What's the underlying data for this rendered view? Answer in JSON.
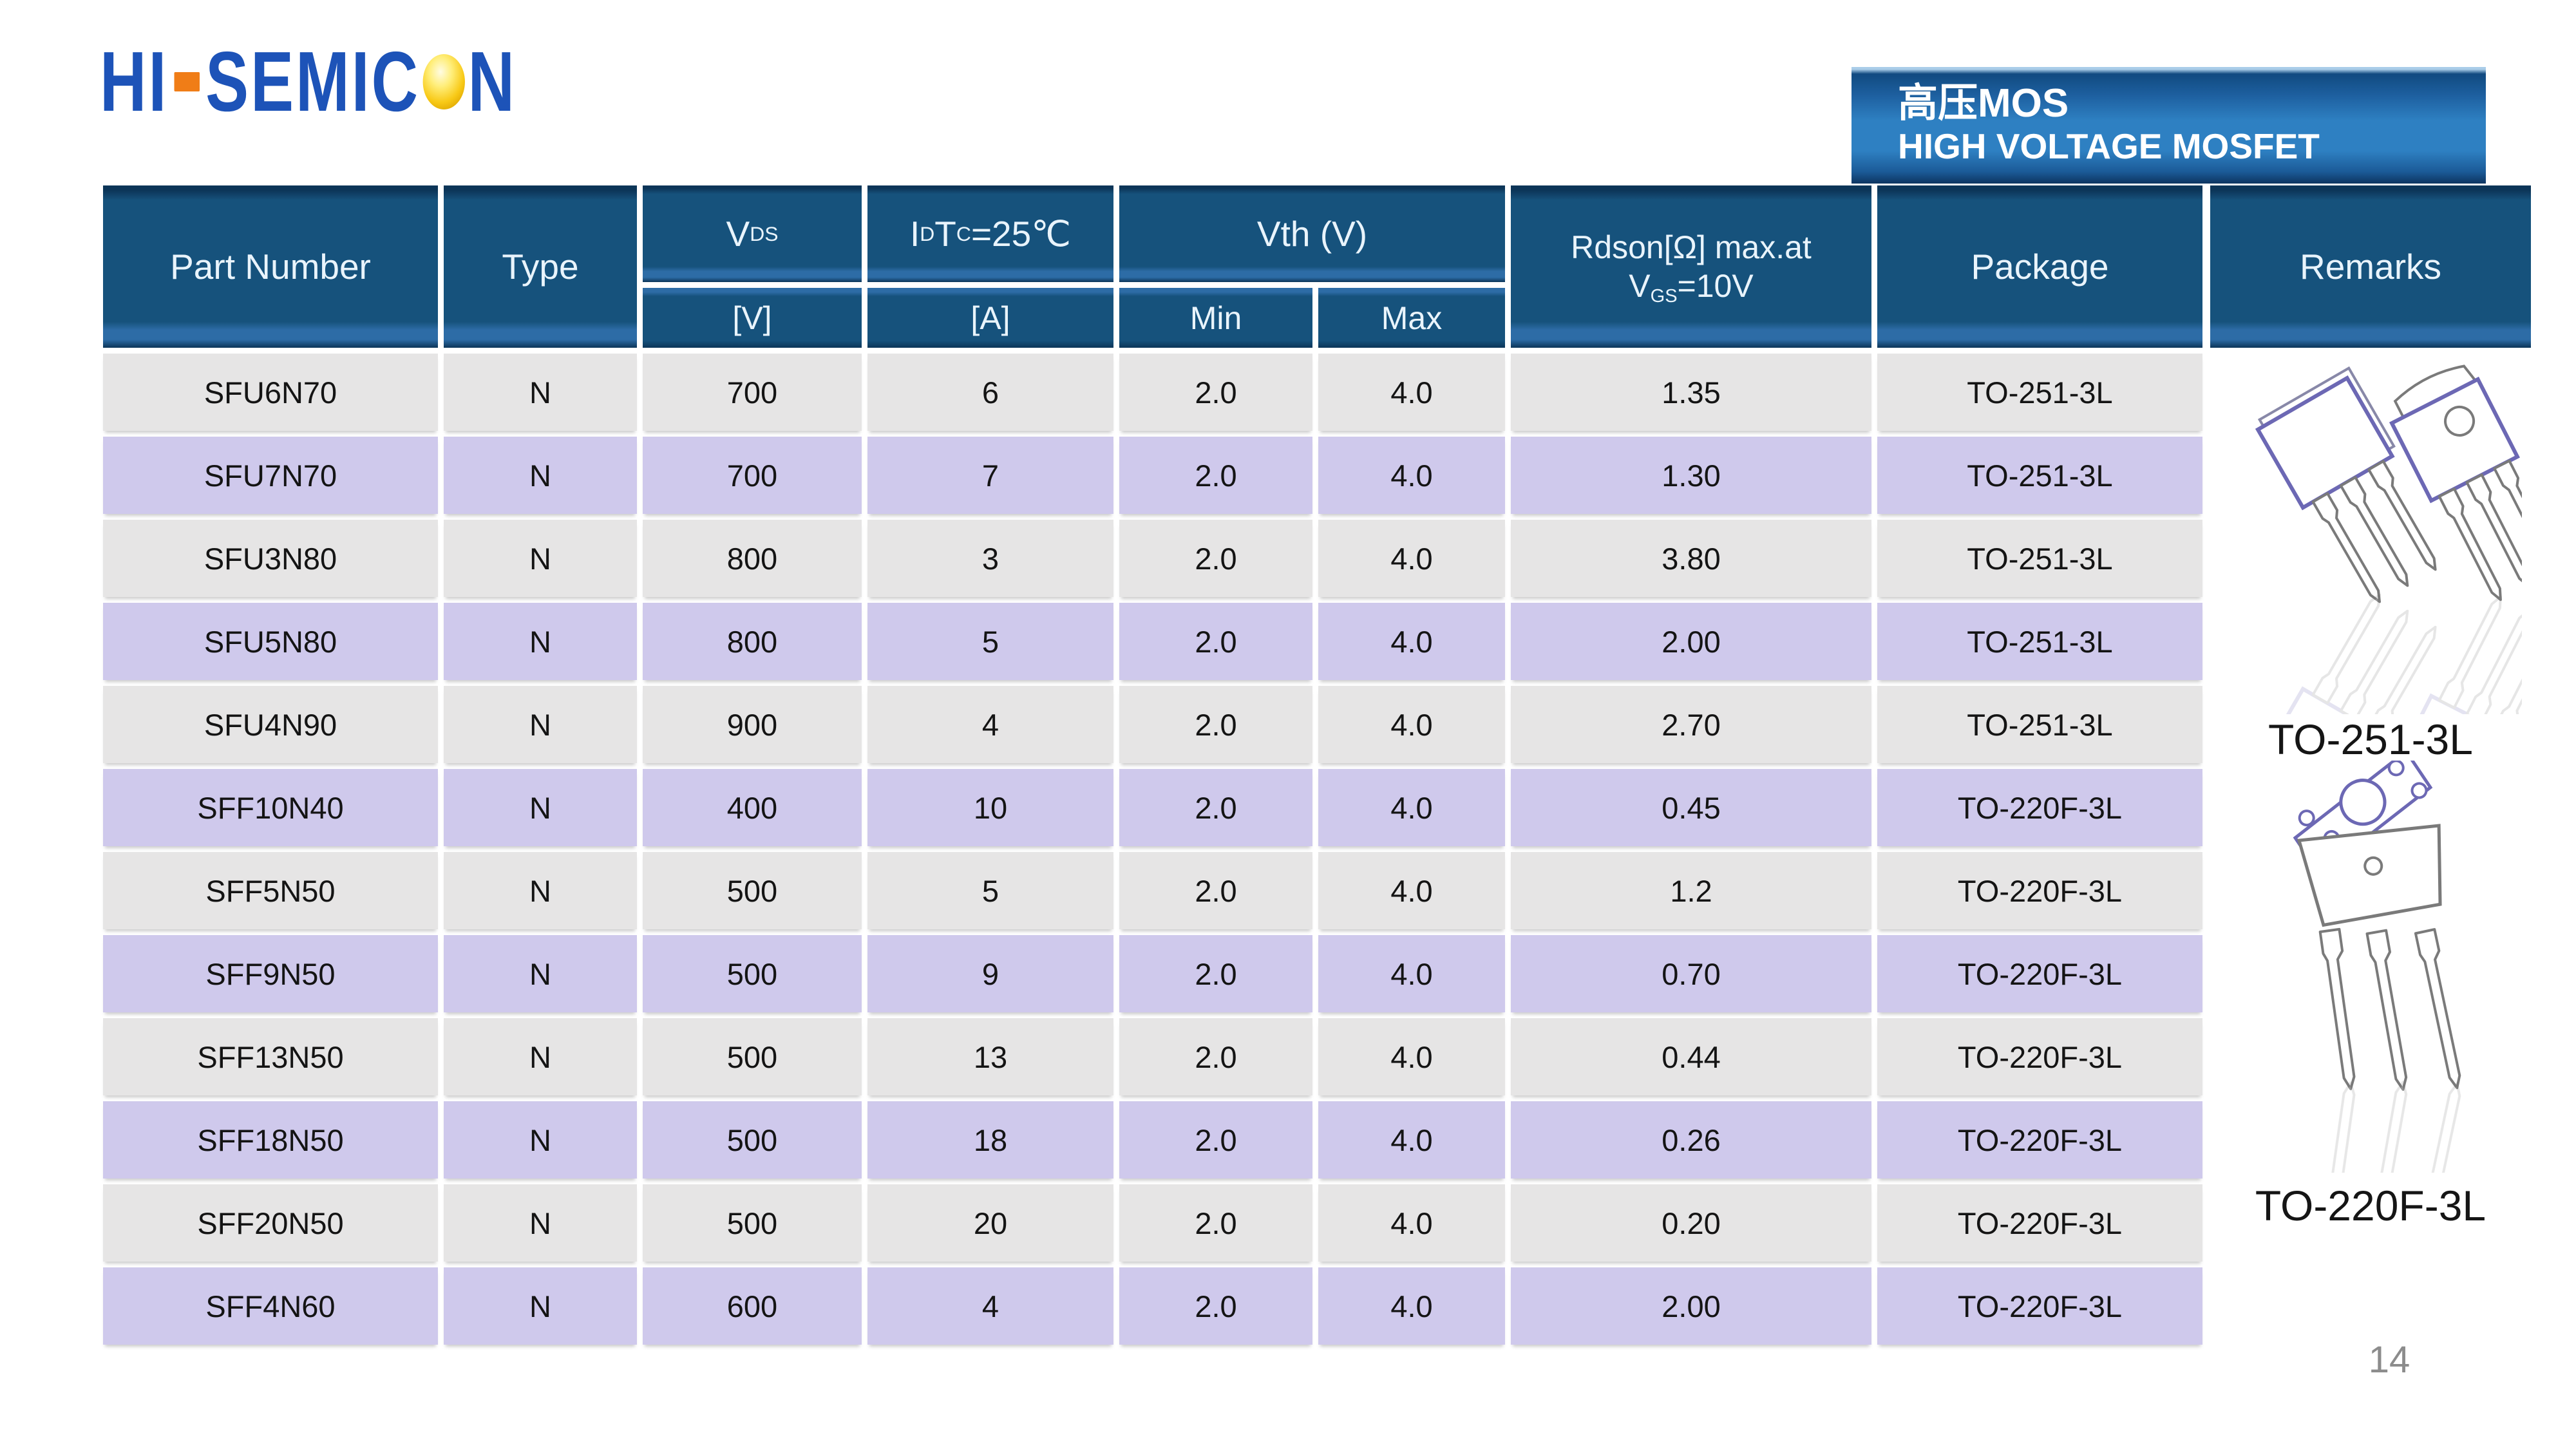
{
  "logo": {
    "part1": "HI",
    "part2": "SEMIC",
    "part3": "N",
    "blue": "#1d53b8",
    "dash_orange": "#f07d17",
    "ball_gold": "#f8c916"
  },
  "badge": {
    "line1": "高压MOS",
    "line2": "HIGH VOLTAGE MOSFET",
    "bg_top": "#1d5f9f",
    "bg_mid": "#2e80c2"
  },
  "table": {
    "header_bg": "#16527c",
    "row_gray": "#e6e5e5",
    "row_purple": "#cfc9ec",
    "headers": {
      "part": "Part Number",
      "type": "Type",
      "vds": "V~DS~",
      "id": "I~D~ T~C~=25℃",
      "vth": "Vth (V)",
      "vds_unit": "[V]",
      "id_unit": "[A]",
      "min": "Min",
      "max": "Max",
      "rdson_line1": "Rdson[Ω] max.at",
      "rdson_line2": "V~GS~=10V",
      "package": "Package",
      "remarks": "Remarks"
    },
    "rows": [
      {
        "part": "SFU6N70",
        "type": "N",
        "vds": "700",
        "id": "6",
        "vmin": "2.0",
        "vmax": "4.0",
        "rdson": "1.35",
        "pkg": "TO-251-3L"
      },
      {
        "part": "SFU7N70",
        "type": "N",
        "vds": "700",
        "id": "7",
        "vmin": "2.0",
        "vmax": "4.0",
        "rdson": "1.30",
        "pkg": "TO-251-3L"
      },
      {
        "part": "SFU3N80",
        "type": "N",
        "vds": "800",
        "id": "3",
        "vmin": "2.0",
        "vmax": "4.0",
        "rdson": "3.80",
        "pkg": "TO-251-3L"
      },
      {
        "part": "SFU5N80",
        "type": "N",
        "vds": "800",
        "id": "5",
        "vmin": "2.0",
        "vmax": "4.0",
        "rdson": "2.00",
        "pkg": "TO-251-3L"
      },
      {
        "part": "SFU4N90",
        "type": "N",
        "vds": "900",
        "id": "4",
        "vmin": "2.0",
        "vmax": "4.0",
        "rdson": "2.70",
        "pkg": "TO-251-3L"
      },
      {
        "part": "SFF10N40",
        "type": "N",
        "vds": "400",
        "id": "10",
        "vmin": "2.0",
        "vmax": "4.0",
        "rdson": "0.45",
        "pkg": "TO-220F-3L"
      },
      {
        "part": "SFF5N50",
        "type": "N",
        "vds": "500",
        "id": "5",
        "vmin": "2.0",
        "vmax": "4.0",
        "rdson": "1.2",
        "pkg": "TO-220F-3L"
      },
      {
        "part": "SFF9N50",
        "type": "N",
        "vds": "500",
        "id": "9",
        "vmin": "2.0",
        "vmax": "4.0",
        "rdson": "0.70",
        "pkg": "TO-220F-3L"
      },
      {
        "part": "SFF13N50",
        "type": "N",
        "vds": "500",
        "id": "13",
        "vmin": "2.0",
        "vmax": "4.0",
        "rdson": "0.44",
        "pkg": "TO-220F-3L"
      },
      {
        "part": "SFF18N50",
        "type": "N",
        "vds": "500",
        "id": "18",
        "vmin": "2.0",
        "vmax": "4.0",
        "rdson": "0.26",
        "pkg": "TO-220F-3L"
      },
      {
        "part": "SFF20N50",
        "type": "N",
        "vds": "500",
        "id": "20",
        "vmin": "2.0",
        "vmax": "4.0",
        "rdson": "0.20",
        "pkg": "TO-220F-3L"
      },
      {
        "part": "SFF4N60",
        "type": "N",
        "vds": "600",
        "id": "4",
        "vmin": "2.0",
        "vmax": "4.0",
        "rdson": "2.00",
        "pkg": "TO-220F-3L"
      }
    ]
  },
  "remarks_panel": {
    "label1": "TO-251-3L",
    "label2": "TO-220F-3L"
  },
  "page_number": "14"
}
